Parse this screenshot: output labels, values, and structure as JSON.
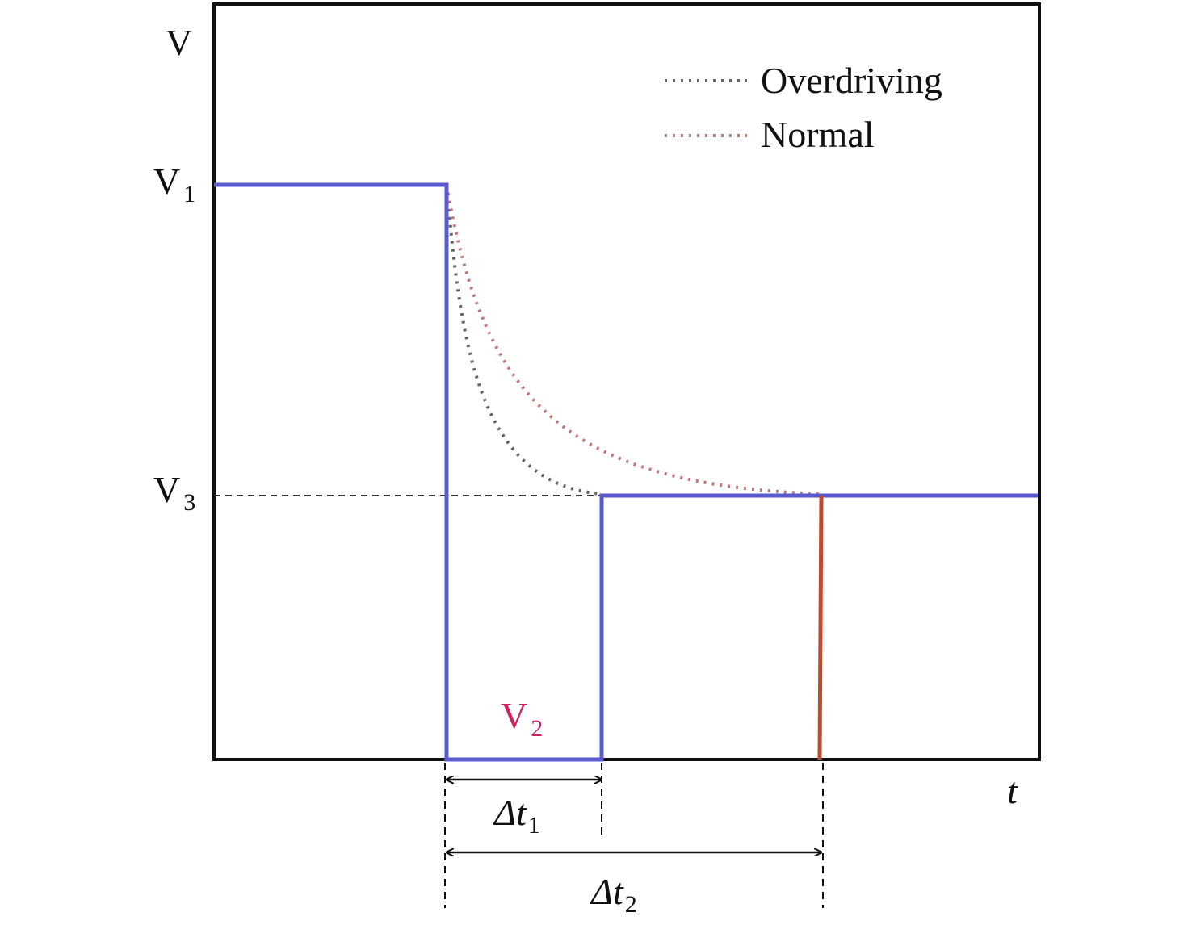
{
  "axis": {
    "y_label": "V",
    "x_label": "t"
  },
  "levels": {
    "v1": {
      "base": "V",
      "sub": "1"
    },
    "v2": {
      "base": "V",
      "sub": "2"
    },
    "v3": {
      "base": "V",
      "sub": "3"
    }
  },
  "intervals": {
    "dt1": {
      "base": "Δt",
      "sub": "1"
    },
    "dt2": {
      "base": "Δt",
      "sub": "2"
    }
  },
  "legend": {
    "items": [
      "Overdriving",
      "Normal"
    ]
  }
}
